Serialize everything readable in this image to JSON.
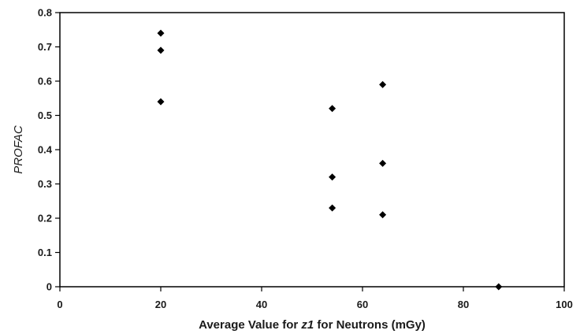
{
  "chart_data": {
    "type": "scatter",
    "title": "",
    "xlabel_parts": [
      "Average Value for ",
      "z1",
      " for Neutrons (mGy)"
    ],
    "ylabel": "PROFAC",
    "xlim": [
      0,
      100
    ],
    "ylim": [
      0,
      0.8
    ],
    "xticks": [
      0,
      20,
      40,
      60,
      80,
      100
    ],
    "yticks": [
      0,
      0.1,
      0.2,
      0.3,
      0.4,
      0.5,
      0.6,
      0.7,
      0.8
    ],
    "grid": false,
    "legend": "none",
    "marker": "diamond",
    "marker_color": "#000000",
    "series": [
      {
        "points": [
          {
            "x": 20,
            "y": 0.74
          },
          {
            "x": 20,
            "y": 0.69
          },
          {
            "x": 20,
            "y": 0.54
          },
          {
            "x": 54,
            "y": 0.52
          },
          {
            "x": 54,
            "y": 0.32
          },
          {
            "x": 54,
            "y": 0.23
          },
          {
            "x": 64,
            "y": 0.59
          },
          {
            "x": 64,
            "y": 0.36
          },
          {
            "x": 64,
            "y": 0.21
          },
          {
            "x": 87,
            "y": 0.0
          }
        ]
      }
    ]
  }
}
